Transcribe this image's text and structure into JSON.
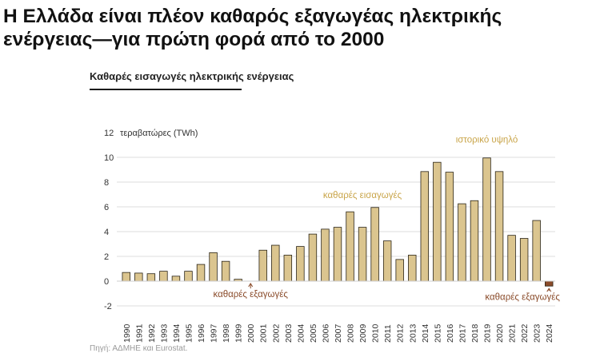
{
  "headline": {
    "line1": "Η Ελλάδα είναι πλέον καθαρός εξαγωγέας ηλεκτρικής",
    "line2": "ενέργειας—για πρώτη φορά από το 2000"
  },
  "source": "Πηγή: ΑΔΜΗΕ και Eurostat.",
  "colors": {
    "bar": "#dbc58f",
    "bar_stroke": "#2a2417",
    "negative_bar": "#8a4b2a",
    "annotation_gold": "#c9a54a",
    "annotation_brown": "#8a4b2a",
    "grid": "#dddddd",
    "axis_text": "#333333"
  },
  "chart_data": {
    "type": "bar",
    "title": "Καθαρές εισαγωγές ηλεκτρικής ενέργειας",
    "unit_label": "τεραβατώρες (TWh)",
    "categories": [
      "1990",
      "1991",
      "1992",
      "1993",
      "1994",
      "1995",
      "1996",
      "1997",
      "1998",
      "1999",
      "2000",
      "2001",
      "2002",
      "2003",
      "2004",
      "2005",
      "2006",
      "2007",
      "2008",
      "2009",
      "2010",
      "2011",
      "2012",
      "2013",
      "2014",
      "2015",
      "2016",
      "2017",
      "2018",
      "2019",
      "2020",
      "2021",
      "2022",
      "2023",
      "2024"
    ],
    "values": [
      0.7,
      0.65,
      0.6,
      0.8,
      0.4,
      0.8,
      1.35,
      2.3,
      1.6,
      0.15,
      0.0,
      2.5,
      2.9,
      2.1,
      2.8,
      3.8,
      4.2,
      4.35,
      5.6,
      4.35,
      5.95,
      3.25,
      1.75,
      2.1,
      8.85,
      9.6,
      8.8,
      6.25,
      6.5,
      9.95,
      8.85,
      3.7,
      3.45,
      4.9,
      -0.4
    ],
    "yticks": [
      -2,
      0,
      2,
      4,
      6,
      8,
      10,
      12
    ],
    "ylim": [
      -2,
      12
    ],
    "grid": true,
    "annotations": [
      {
        "text": "ιστορικό υψηλό",
        "x": "2019",
        "y": 11.2,
        "style": "gold"
      },
      {
        "text": "καθαρές εισαγωγές",
        "x": "2009",
        "y": 6.7,
        "style": "gold"
      },
      {
        "text": "καθαρές εξαγωγές",
        "x": "2000",
        "y": -1.3,
        "style": "brown",
        "arrow_to": 0
      },
      {
        "text": "καθαρές εξαγωγές",
        "x": "2022",
        "y": -1.5,
        "style": "brown",
        "arrow_to": -0.4
      }
    ]
  }
}
